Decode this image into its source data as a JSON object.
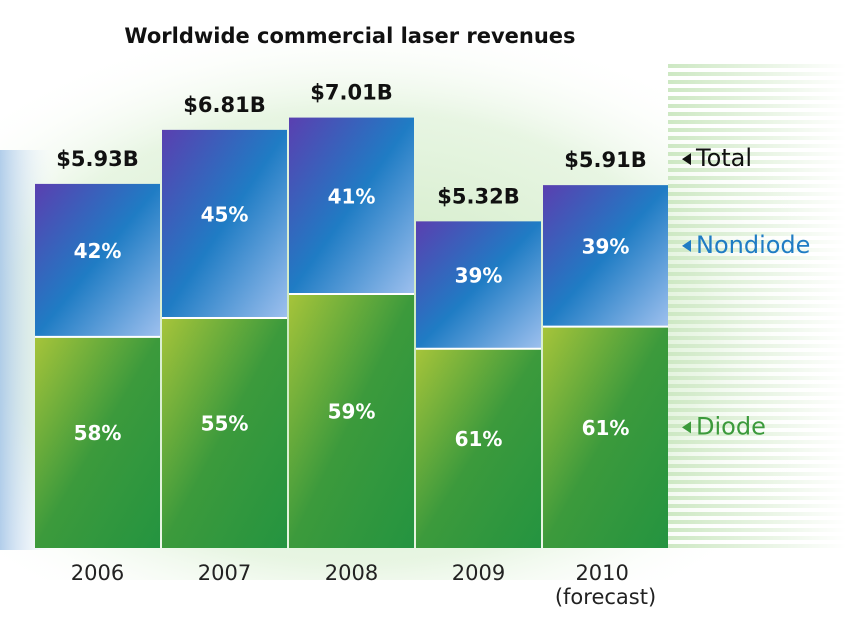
{
  "chart_data": {
    "type": "stacked_bar",
    "title": "Worldwide commercial laser revenues",
    "categories": [
      "2006",
      "2007",
      "2008",
      "2009",
      "2010 (forecast)"
    ],
    "total": {
      "name": "Total",
      "color": "#111111",
      "values": [
        5.93,
        6.81,
        7.01,
        5.32,
        5.91
      ],
      "value_labels": [
        "$5.93B",
        "$6.81B",
        "$7.01B",
        "$5.32B",
        "$5.91B"
      ]
    },
    "series": [
      {
        "name": "Diode",
        "color": "#3c9a3c",
        "values": [
          58,
          55,
          59,
          61,
          61
        ],
        "value_labels": [
          "58%",
          "55%",
          "59%",
          "61%",
          "61%"
        ]
      },
      {
        "name": "Nondiode",
        "color": "#1f7cc4",
        "values": [
          42,
          45,
          41,
          39,
          39
        ],
        "value_labels": [
          "42%",
          "45%",
          "41%",
          "39%",
          "39%"
        ]
      }
    ]
  }
}
